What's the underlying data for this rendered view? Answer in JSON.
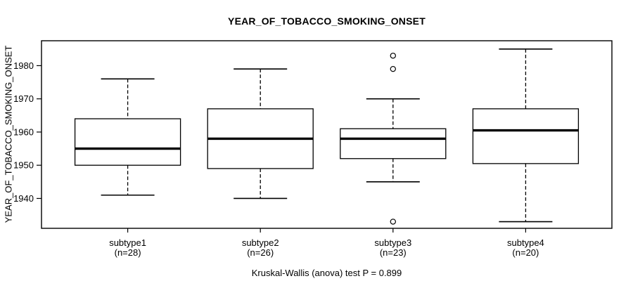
{
  "page": {
    "background": "#ffffff",
    "foreground": "#000000"
  },
  "chart_data": {
    "type": "boxplot",
    "title": "YEAR_OF_TOBACCO_SMOKING_ONSET",
    "ylabel": "YEAR_OF_TOBACCO_SMOKING_ONSET",
    "caption": "Kruskal-Wallis (anova) test P = 0.899",
    "ylim": [
      1931,
      1987.5
    ],
    "yticks": [
      1940,
      1950,
      1960,
      1970,
      1980
    ],
    "grid": false,
    "legend": "none",
    "orientation": "vertical",
    "stroke_color": "#000000",
    "box_fill": "#ffffff",
    "categories": [
      "subtype1",
      "subtype2",
      "subtype3",
      "subtype4"
    ],
    "groups": [
      {
        "label": "subtype1",
        "n_label": "(n=28)",
        "n": 28,
        "whisker_low": 1941,
        "q1": 1950,
        "median": 1955,
        "q3": 1964,
        "whisker_high": 1976,
        "outliers": []
      },
      {
        "label": "subtype2",
        "n_label": "(n=26)",
        "n": 26,
        "whisker_low": 1940,
        "q1": 1949,
        "median": 1958,
        "q3": 1967,
        "whisker_high": 1979,
        "outliers": []
      },
      {
        "label": "subtype3",
        "n_label": "(n=23)",
        "n": 23,
        "whisker_low": 1945,
        "q1": 1952,
        "median": 1958,
        "q3": 1961,
        "whisker_high": 1970,
        "outliers": [
          1983,
          1979,
          1933
        ]
      },
      {
        "label": "subtype4",
        "n_label": "(n=20)",
        "n": 20,
        "whisker_low": 1933,
        "q1": 1950.5,
        "median": 1960.5,
        "q3": 1967,
        "whisker_high": 1985,
        "outliers": []
      }
    ]
  }
}
